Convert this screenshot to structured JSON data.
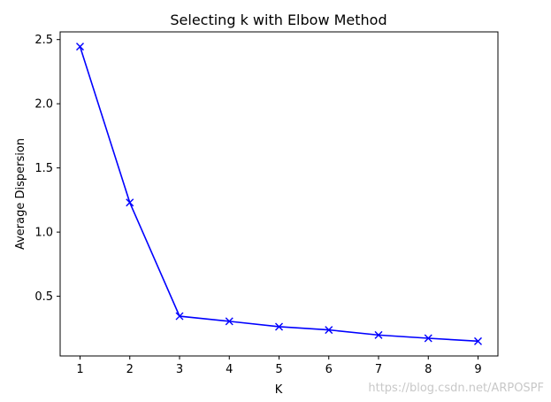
{
  "chart_data": {
    "type": "line",
    "title": "Selecting k with Elbow Method",
    "xlabel": "K",
    "ylabel": "Average Dispersion",
    "x": [
      1,
      2,
      3,
      4,
      5,
      6,
      7,
      8,
      9
    ],
    "series": [
      {
        "values": [
          2.445,
          1.23,
          0.345,
          0.305,
          0.263,
          0.238,
          0.198,
          0.173,
          0.15
        ],
        "color": "#0000ff",
        "marker": "x"
      }
    ],
    "xticks": [
      "1",
      "2",
      "3",
      "4",
      "5",
      "6",
      "7",
      "8",
      "9"
    ],
    "yticks": [
      "0.5",
      "1.0",
      "1.5",
      "2.0",
      "2.5"
    ],
    "xlim": [
      0.6,
      9.4
    ],
    "ylim": [
      0.035,
      2.56
    ],
    "grid": false
  },
  "watermark": "https://blog.csdn.net/ARPOSPF"
}
